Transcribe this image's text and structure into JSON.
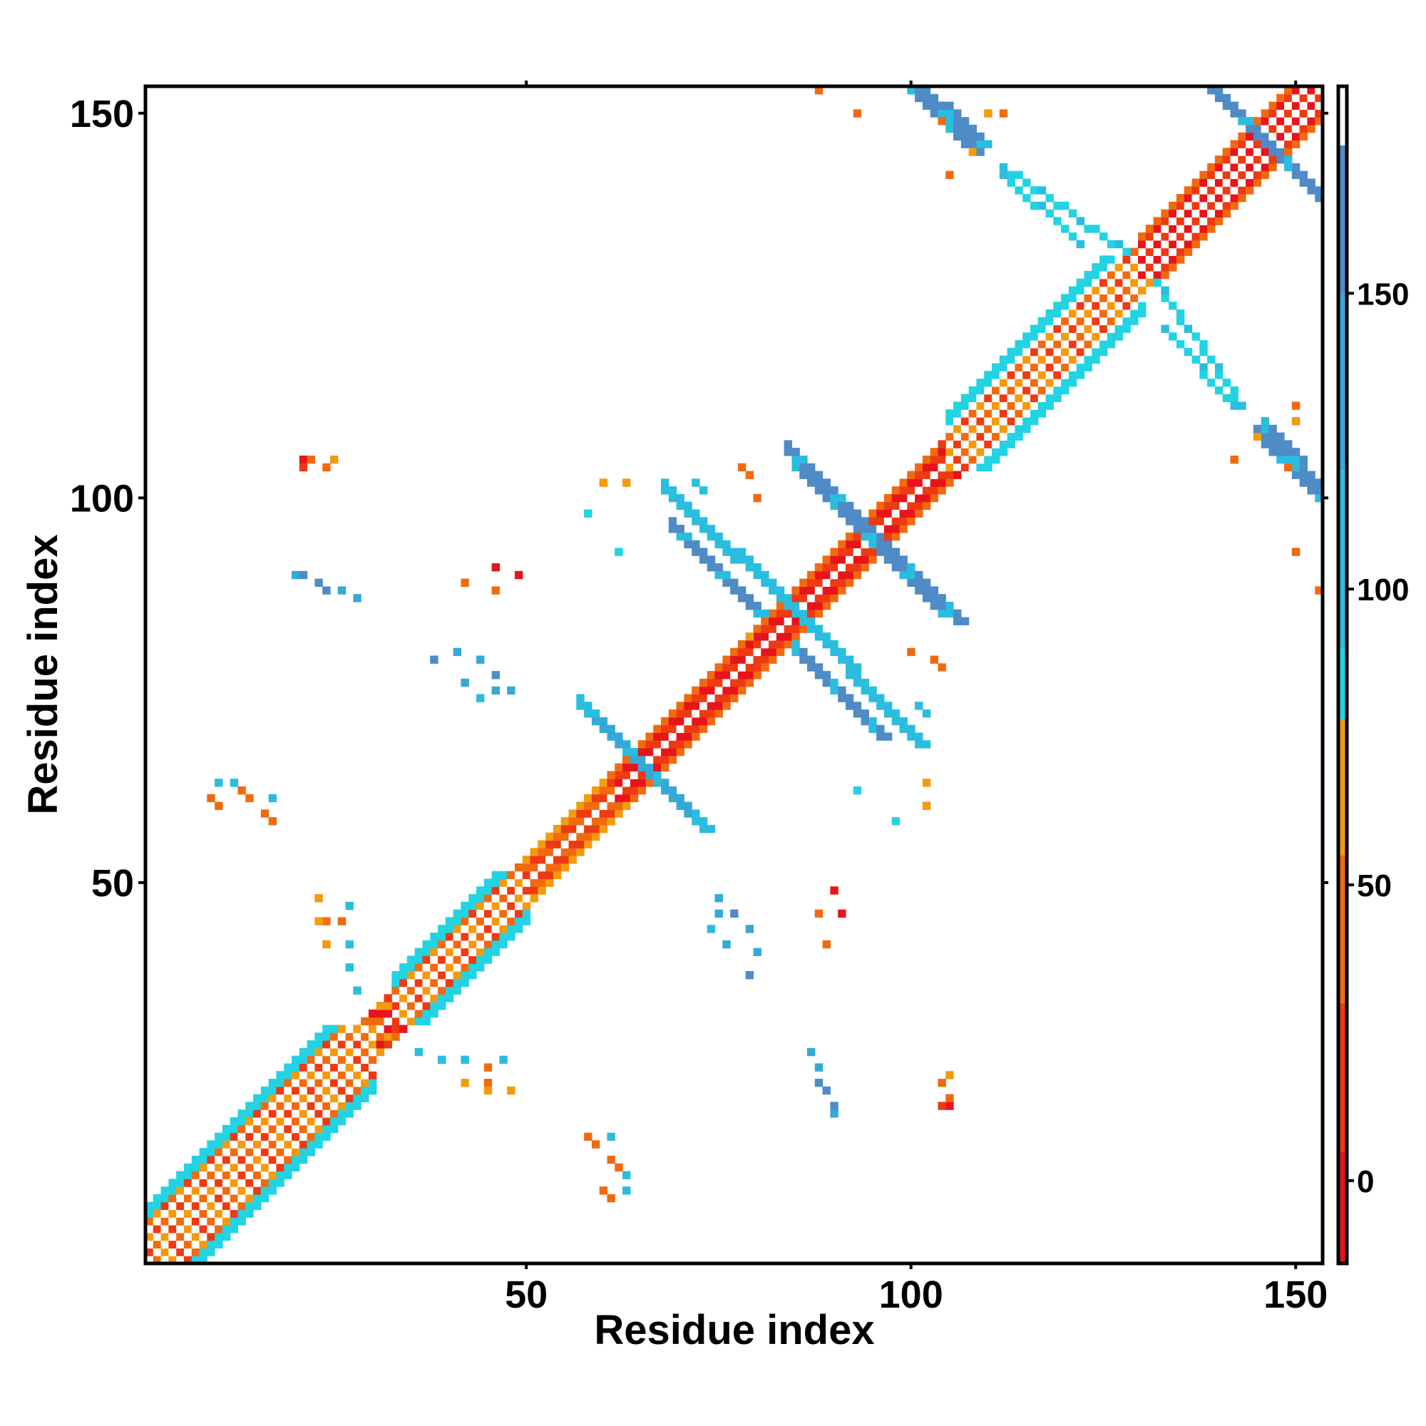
{
  "chart_data": {
    "type": "heatmap",
    "title": "",
    "xlabel": "Residue index",
    "ylabel": "Residue index",
    "xlim": [
      0.5,
      153.5
    ],
    "ylim": [
      0.5,
      153.5
    ],
    "x_ticks": [
      50,
      100,
      150
    ],
    "x_tick_labels": [
      "50",
      "100",
      "150"
    ],
    "y_ticks": [
      50,
      100,
      150
    ],
    "y_tick_labels": [
      "50",
      "100",
      "150"
    ],
    "colorbar": {
      "range": [
        -14,
        185
      ],
      "ticks": [
        0,
        50,
        100,
        150
      ],
      "tick_labels": [
        "0",
        "50",
        "100",
        "150"
      ],
      "bands": [
        {
          "from": -14,
          "to": 5,
          "color": "#e8131b"
        },
        {
          "from": 5,
          "to": 30,
          "color": "#ee3a12"
        },
        {
          "from": 30,
          "to": 55,
          "color": "#f26a0f"
        },
        {
          "from": 55,
          "to": 78,
          "color": "#f59a0c"
        },
        {
          "from": 78,
          "to": 90,
          "color": "#22d3e3"
        },
        {
          "from": 90,
          "to": 120,
          "color": "#2bbde0"
        },
        {
          "from": 120,
          "to": 150,
          "color": "#34a9d8"
        },
        {
          "from": 150,
          "to": 175,
          "color": "#4f8bc6"
        },
        {
          "from": 175,
          "to": 185,
          "color": "#ffffff"
        }
      ]
    },
    "grid": false,
    "legend": "right",
    "colors": {
      "red": "#e8131b",
      "red_orange": "#ee3a12",
      "orange": "#f26a0f",
      "amber": "#f59a0c",
      "cyan": "#22d3e3",
      "sky": "#2bbde0",
      "steel": "#4f8bc6"
    },
    "diagonal_band": {
      "from": 1,
      "to": 153,
      "width": 3
    },
    "blocks": [
      {
        "x": [
          1,
          30
        ],
        "y": [
          1,
          30
        ],
        "half_width": 7,
        "edge_color": "#22d3e3",
        "inner_colors": [
          "#f26a0f",
          "#f59a0c",
          "#ee3a12"
        ]
      },
      {
        "x": [
          33,
          50
        ],
        "y": [
          33,
          50
        ],
        "half_width": 5,
        "edge_color": "#22d3e3",
        "inner_colors": [
          "#f26a0f",
          "#ee3a12",
          "#f59a0c"
        ]
      },
      {
        "x": [
          50,
          62
        ],
        "y": [
          50,
          62
        ],
        "half_width": 3,
        "edge_color": "#f59a0c",
        "inner_colors": [
          "#f26a0f",
          "#ee3a12"
        ]
      },
      {
        "x": [
          62,
          80
        ],
        "y": [
          62,
          80
        ],
        "half_width": 3,
        "edge_color": "#f26a0f",
        "inner_colors": [
          "#ee3a12",
          "#e8131b"
        ]
      },
      {
        "x": [
          80,
          105
        ],
        "y": [
          80,
          105
        ],
        "half_width": 3,
        "edge_color": "#f26a0f",
        "inner_colors": [
          "#e8131b",
          "#ee3a12"
        ]
      },
      {
        "x": [
          105,
          130
        ],
        "y": [
          105,
          130
        ],
        "half_width": 6,
        "edge_color": "#22d3e3",
        "inner_colors": [
          "#f26a0f",
          "#f59a0c",
          "#ee3a12"
        ]
      },
      {
        "x": [
          130,
          153
        ],
        "y": [
          130,
          153
        ],
        "half_width": 4,
        "edge_color": "#f26a0f",
        "inner_colors": [
          "#ee3a12",
          "#e8131b"
        ]
      }
    ],
    "antiparallel_strips": [
      {
        "x": [
          57,
          72
        ],
        "y": [
          73,
          58
        ],
        "width": 2,
        "color": "#34a9d8"
      },
      {
        "x": [
          68,
          88
        ],
        "y": [
          101,
          82
        ],
        "width": 2,
        "color": "#2bbde0"
      },
      {
        "x": [
          85,
          106
        ],
        "y": [
          104,
          84
        ],
        "width": 2,
        "color": "#4f8bc6"
      },
      {
        "x": [
          85,
          96
        ],
        "y": [
          80,
          69
        ],
        "width": 2,
        "color": "#4f8bc6"
      },
      {
        "x": [
          100,
          108
        ],
        "y": [
          153,
          145
        ],
        "width": 2,
        "color": "#4f8bc6"
      },
      {
        "x": [
          139,
          153
        ],
        "y": [
          153,
          139
        ],
        "width": 2,
        "color": "#4f8bc6"
      },
      {
        "x": [
          146,
          153
        ],
        "y": [
          109,
          101
        ],
        "width": 2,
        "color": "#4f8bc6"
      },
      {
        "x": [
          112,
          128
        ],
        "y": [
          143,
          132
        ],
        "width": 1,
        "color": "#22d3e3"
      },
      {
        "x": [
          133,
          142
        ],
        "y": [
          122,
          112
        ],
        "width": 1,
        "color": "#22d3e3"
      }
    ],
    "scattered_contacts": [
      {
        "x": 21,
        "y": 105,
        "v": 0
      },
      {
        "x": 22,
        "y": 105,
        "v": 30
      },
      {
        "x": 24,
        "y": 104,
        "v": 40
      },
      {
        "x": 20,
        "y": 90,
        "v": 140
      },
      {
        "x": 23,
        "y": 89,
        "v": 150
      },
      {
        "x": 26,
        "y": 88,
        "v": 130
      },
      {
        "x": 10,
        "y": 63,
        "v": 90
      },
      {
        "x": 9,
        "y": 61,
        "v": 40
      },
      {
        "x": 13,
        "y": 62,
        "v": 30
      },
      {
        "x": 16,
        "y": 59,
        "v": 50
      },
      {
        "x": 38,
        "y": 79,
        "v": 150
      },
      {
        "x": 42,
        "y": 76,
        "v": 140
      },
      {
        "x": 44,
        "y": 74,
        "v": 90
      },
      {
        "x": 46,
        "y": 75,
        "v": 120
      },
      {
        "x": 42,
        "y": 89,
        "v": 40
      },
      {
        "x": 46,
        "y": 91,
        "v": 0
      },
      {
        "x": 60,
        "y": 102,
        "v": 60
      },
      {
        "x": 58,
        "y": 98,
        "v": 80
      },
      {
        "x": 72,
        "y": 102,
        "v": 90
      },
      {
        "x": 78,
        "y": 104,
        "v": 40
      },
      {
        "x": 100,
        "y": 80,
        "v": 30
      },
      {
        "x": 103,
        "y": 79,
        "v": 40
      },
      {
        "x": 101,
        "y": 73,
        "v": 90
      },
      {
        "x": 93,
        "y": 62,
        "v": 85
      },
      {
        "x": 102,
        "y": 63,
        "v": 60
      },
      {
        "x": 88,
        "y": 153,
        "v": 30
      },
      {
        "x": 104,
        "y": 149,
        "v": 40
      },
      {
        "x": 110,
        "y": 150,
        "v": 60
      },
      {
        "x": 150,
        "y": 93,
        "v": 40
      },
      {
        "x": 150,
        "y": 112,
        "v": 50
      },
      {
        "x": 142,
        "y": 105,
        "v": 40
      },
      {
        "x": 145,
        "y": 108,
        "v": 60
      },
      {
        "x": 75,
        "y": 48,
        "v": 130
      },
      {
        "x": 77,
        "y": 46,
        "v": 150
      },
      {
        "x": 79,
        "y": 44,
        "v": 140
      },
      {
        "x": 80,
        "y": 41,
        "v": 130
      },
      {
        "x": 88,
        "y": 46,
        "v": 30
      },
      {
        "x": 90,
        "y": 49,
        "v": 0
      },
      {
        "x": 87,
        "y": 28,
        "v": 140
      },
      {
        "x": 88,
        "y": 24,
        "v": 160
      },
      {
        "x": 90,
        "y": 21,
        "v": 150
      },
      {
        "x": 104,
        "y": 24,
        "v": 30
      },
      {
        "x": 104,
        "y": 21,
        "v": 20
      },
      {
        "x": 105,
        "y": 25,
        "v": 60
      },
      {
        "x": 36,
        "y": 28,
        "v": 90
      },
      {
        "x": 39,
        "y": 27,
        "v": 95
      },
      {
        "x": 42,
        "y": 27,
        "v": 100
      },
      {
        "x": 42,
        "y": 24,
        "v": 60
      },
      {
        "x": 45,
        "y": 24,
        "v": 40
      },
      {
        "x": 23,
        "y": 48,
        "v": 60
      },
      {
        "x": 23,
        "y": 45,
        "v": 70
      },
      {
        "x": 26,
        "y": 45,
        "v": 40
      },
      {
        "x": 27,
        "y": 47,
        "v": 90
      },
      {
        "x": 58,
        "y": 17,
        "v": 40
      },
      {
        "x": 61,
        "y": 17,
        "v": 90
      },
      {
        "x": 61,
        "y": 14,
        "v": 30
      },
      {
        "x": 63,
        "y": 12,
        "v": 95
      },
      {
        "x": 60,
        "y": 10,
        "v": 40
      }
    ]
  }
}
